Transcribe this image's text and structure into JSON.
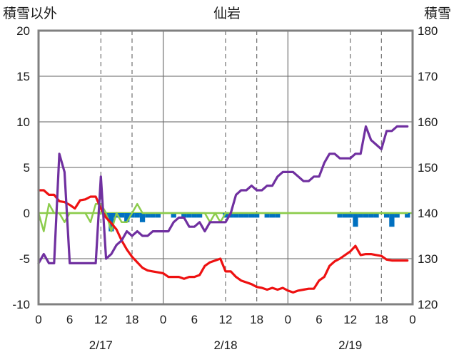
{
  "chart_data": {
    "type": "line",
    "title": "仙岩",
    "left_axis": {
      "label": "積雪以外",
      "range": [
        -10,
        20
      ],
      "ticks": [
        "20",
        "15",
        "10",
        "5",
        "0",
        "-5",
        "-10"
      ]
    },
    "right_axis": {
      "label": "積雪",
      "range": [
        120,
        180
      ],
      "ticks": [
        "180",
        "170",
        "160",
        "150",
        "140",
        "130",
        "120"
      ]
    },
    "x_axis": {
      "range_hours": [
        0,
        72
      ],
      "tick_labels": [
        "0",
        "6",
        "12",
        "18",
        "0",
        "6",
        "12",
        "18",
        "0",
        "6",
        "12",
        "18",
        "0"
      ],
      "date_labels": [
        {
          "text": "2/17",
          "at_hour": 12
        },
        {
          "text": "2/18",
          "at_hour": 36
        },
        {
          "text": "2/19",
          "at_hour": 60
        }
      ],
      "dashed_at_hours": [
        12,
        18,
        36,
        42,
        60,
        66
      ],
      "solid_at_hours": [
        24,
        48
      ]
    },
    "colors": {
      "temperature": "#ee1111",
      "wind": "#8ccc4c",
      "snow_depth": "#7030a0",
      "precip": "#0070c0",
      "zero_line": "#8ccc4c"
    },
    "series": [
      {
        "key": "temperature",
        "axis": "left",
        "x": [
          0,
          1,
          2,
          3,
          4,
          5,
          6,
          7,
          8,
          9,
          10,
          11,
          12,
          13,
          14,
          15,
          16,
          17,
          18,
          19,
          20,
          21,
          22,
          23,
          24,
          25,
          26,
          27,
          28,
          29,
          30,
          31,
          32,
          33,
          34,
          35,
          36,
          37,
          38,
          39,
          40,
          41,
          42,
          43,
          44,
          45,
          46,
          47,
          48,
          49,
          50,
          51,
          52,
          53,
          54,
          55,
          56,
          57,
          58,
          59,
          60,
          61,
          62,
          63,
          64,
          65,
          66,
          67,
          68,
          69,
          70,
          71
        ],
        "values": [
          2.5,
          2.5,
          2.0,
          2.0,
          1.3,
          1.2,
          0.9,
          0.5,
          1.4,
          1.5,
          1.8,
          1.8,
          0.5,
          -0.5,
          -1.1,
          -1.8,
          -3.0,
          -4.0,
          -4.8,
          -5.4,
          -6.0,
          -6.3,
          -6.4,
          -6.5,
          -6.6,
          -7.0,
          -7.0,
          -7.0,
          -7.2,
          -7.0,
          -7.0,
          -6.8,
          -5.8,
          -5.4,
          -5.2,
          -5.0,
          -6.4,
          -6.4,
          -7.0,
          -7.4,
          -7.6,
          -7.8,
          -8.1,
          -8.2,
          -8.4,
          -8.2,
          -8.4,
          -8.2,
          -8.5,
          -8.7,
          -8.5,
          -8.4,
          -8.3,
          -8.3,
          -7.4,
          -7.0,
          -5.8,
          -5.3,
          -5.0,
          -4.6,
          -4.2,
          -3.6,
          -4.6,
          -4.5,
          -4.5,
          -4.6,
          -4.7,
          -5.1,
          -5.2,
          -5.2,
          -5.2,
          -5.2
        ]
      },
      {
        "key": "wind",
        "axis": "left",
        "x": [
          0,
          1,
          2,
          3,
          4,
          5,
          6,
          7,
          8,
          9,
          10,
          11,
          12,
          13,
          14,
          15,
          16,
          17,
          18,
          19,
          20,
          21,
          22,
          23,
          24,
          25,
          26,
          27,
          28,
          29,
          30,
          31,
          32,
          33,
          34,
          35,
          36,
          37,
          38,
          39,
          40,
          41,
          42,
          43,
          44,
          45,
          46,
          47,
          48,
          49,
          50,
          51,
          52,
          53,
          54,
          55,
          56,
          57,
          58,
          59,
          60,
          61,
          62,
          63,
          64,
          65,
          66,
          67,
          68,
          69,
          70,
          71
        ],
        "values": [
          0,
          -2,
          1,
          0,
          0,
          -1,
          0,
          0,
          0,
          0,
          -1,
          1,
          1,
          0,
          -2,
          0,
          -1,
          -1,
          0,
          1,
          0,
          0,
          0,
          0,
          0,
          0,
          0,
          0,
          0,
          0,
          0,
          0,
          0,
          -1,
          0,
          -1,
          0,
          0,
          0,
          0,
          0,
          0,
          0,
          0,
          0,
          0,
          0,
          0,
          0,
          0,
          0,
          0,
          0,
          0,
          0,
          0,
          0,
          0,
          0,
          0,
          0,
          0,
          0,
          0,
          0,
          0,
          0,
          0,
          0,
          0,
          0,
          0
        ]
      },
      {
        "key": "snow_depth",
        "axis": "right",
        "x": [
          0,
          1,
          2,
          3,
          4,
          5,
          6,
          7,
          8,
          9,
          10,
          11,
          12,
          13,
          14,
          15,
          16,
          17,
          18,
          19,
          20,
          21,
          22,
          23,
          24,
          25,
          26,
          27,
          28,
          29,
          30,
          31,
          32,
          33,
          34,
          35,
          36,
          37,
          38,
          39,
          40,
          41,
          42,
          43,
          44,
          45,
          46,
          47,
          48,
          49,
          50,
          51,
          52,
          53,
          54,
          55,
          56,
          57,
          58,
          59,
          60,
          61,
          62,
          63,
          64,
          65,
          66,
          67,
          68,
          69,
          70,
          71
        ],
        "values": [
          129,
          131,
          129,
          129,
          153,
          149,
          129,
          129,
          129,
          129,
          129,
          129,
          148,
          130,
          131,
          133,
          134,
          136,
          135,
          136,
          135,
          135,
          136,
          136,
          136,
          136,
          138,
          139,
          139,
          137,
          137,
          138,
          136,
          138,
          138,
          138,
          138,
          140,
          144,
          145,
          145,
          146,
          145,
          145,
          146,
          146,
          148,
          149,
          149,
          149,
          148,
          147,
          147,
          148,
          148,
          151,
          153,
          153,
          152,
          152,
          152,
          153,
          153,
          159,
          156,
          155,
          154,
          158,
          158,
          159,
          159,
          159
        ]
      },
      {
        "key": "precip",
        "axis": "left",
        "style": "bar",
        "x": [
          13,
          14,
          15,
          16,
          17,
          18,
          19,
          20,
          21,
          22,
          23,
          26,
          28,
          29,
          30,
          31,
          36,
          37,
          38,
          39,
          40,
          41,
          42,
          44,
          45,
          46,
          58,
          59,
          60,
          61,
          62,
          63,
          64,
          65,
          67,
          68,
          69,
          71
        ],
        "values": [
          -0.5,
          -2.0,
          -0.5,
          -0.5,
          -1.0,
          -0.5,
          -0.5,
          -1.0,
          -0.5,
          -0.5,
          -0.5,
          -0.5,
          -0.5,
          -0.5,
          -0.5,
          -0.5,
          -0.5,
          -0.5,
          -0.5,
          -0.5,
          -0.5,
          -0.5,
          -0.5,
          -0.5,
          -0.5,
          -0.5,
          -0.5,
          -0.5,
          -0.5,
          -1.5,
          -0.5,
          -0.5,
          -0.5,
          -0.5,
          -0.5,
          -1.5,
          -0.5,
          -0.5
        ]
      }
    ]
  }
}
